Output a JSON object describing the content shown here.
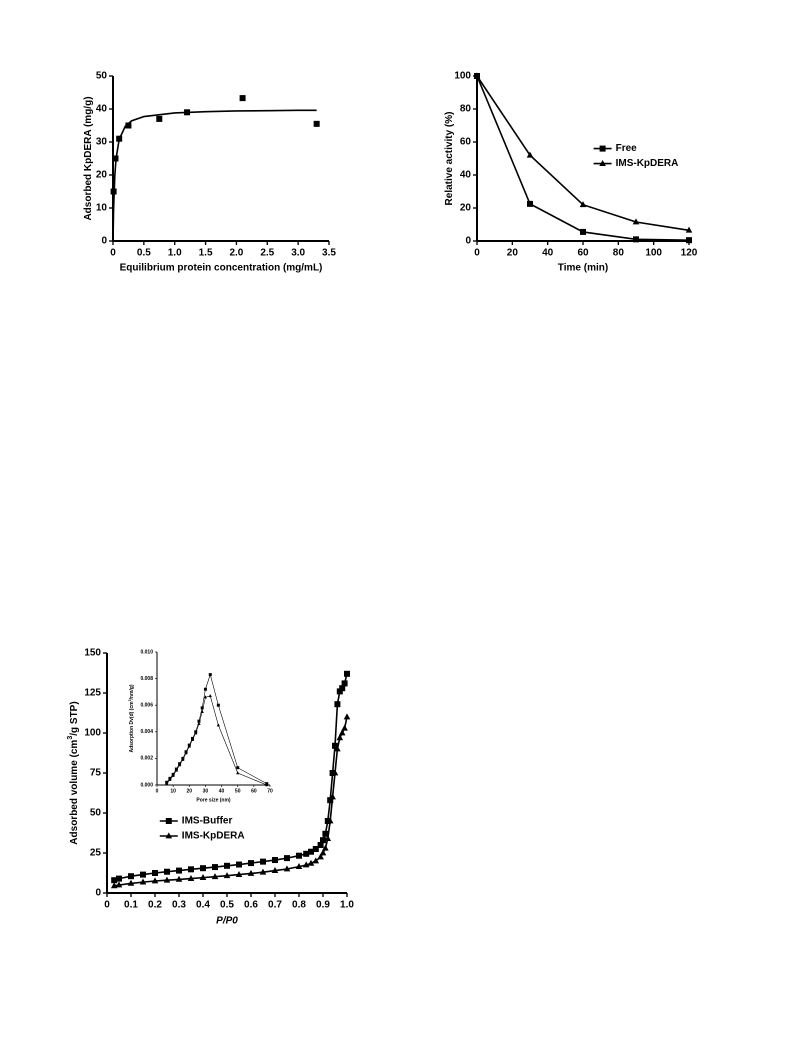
{
  "chart_data": [
    {
      "type": "scatter",
      "xlabel": "Equilibrium protein concentration (mg/mL)",
      "ylabel": [
        "Adsorbed KpDERA (mg/g)"
      ],
      "xlim": [
        0,
        3.5
      ],
      "ylim": [
        0,
        50
      ],
      "xticks": [
        0,
        0.5,
        {
          "value": 1,
          "label": "1.0"
        },
        1.5,
        {
          "value": 2,
          "label": "2.0"
        },
        2.5,
        {
          "value": 3,
          "label": "3.0"
        },
        3.5
      ],
      "yticks": [
        0,
        10,
        20,
        30,
        40,
        50
      ],
      "series": [
        {
          "color": "#000000",
          "marker": "square",
          "line": false,
          "x": [
            0.01,
            0.04,
            0.1,
            0.25,
            0.75,
            1.2,
            2.1,
            3.3
          ],
          "values": [
            15,
            25,
            31,
            35,
            37,
            39,
            43.3,
            35.5
          ]
        },
        {
          "color": "#000000",
          "marker": "none",
          "line": true,
          "x": [
            0,
            0.01,
            0.03,
            0.05,
            0.1,
            0.2,
            0.3,
            0.5,
            1.0,
            1.5,
            2.0,
            2.5,
            3.0,
            3.3
          ],
          "values": [
            0,
            10,
            20,
            25,
            30.8,
            34.8,
            36.4,
            37.7,
            38.8,
            39.2,
            39.4,
            39.5,
            39.6,
            39.6
          ]
        }
      ]
    },
    {
      "type": "line",
      "xlabel": "Time (min)",
      "ylabel": [
        "Relative activity (%)"
      ],
      "xlim": [
        0,
        120
      ],
      "ylim": [
        0,
        100
      ],
      "xticks": [
        0,
        20,
        40,
        60,
        80,
        100,
        120
      ],
      "yticks": [
        0,
        20,
        40,
        60,
        80,
        100
      ],
      "legend": "right",
      "x": [
        0,
        30,
        60,
        90,
        120
      ],
      "series": [
        {
          "name": "Free",
          "color": "#000000",
          "marker": "square",
          "line": true,
          "values": [
            100,
            22.5,
            5.5,
            1,
            0.5
          ]
        },
        {
          "name": "IMS-KpDERA",
          "color": "#000000",
          "marker": "triangle",
          "line": true,
          "values": [
            100,
            52,
            22,
            11.5,
            6.5
          ]
        }
      ]
    },
    {
      "type": "line",
      "xlabel": "P/P0",
      "ylabel": [
        "Adsorbed volume (cm",
        "3",
        "/g STP)"
      ],
      "xlim": [
        0,
        1.0
      ],
      "ylim": [
        0,
        150
      ],
      "xticks": [
        0,
        0.1,
        0.2,
        0.3,
        0.4,
        0.5,
        0.6,
        0.7,
        0.8,
        0.9,
        {
          "value": 1,
          "label": "1.0"
        }
      ],
      "yticks": [
        0,
        25,
        50,
        75,
        100,
        125,
        150
      ],
      "legend": "center left",
      "x": [
        0.03,
        0.05,
        0.1,
        0.15,
        0.2,
        0.25,
        0.3,
        0.35,
        0.4,
        0.45,
        0.5,
        0.55,
        0.6,
        0.65,
        0.7,
        0.75,
        0.8,
        0.83,
        0.85,
        0.87,
        0.89,
        0.9,
        0.91,
        0.92,
        0.93,
        0.94,
        0.95,
        0.96,
        0.97,
        0.98,
        0.99,
        1.0
      ],
      "series": [
        {
          "name": "IMS-Buffer",
          "color": "#000000",
          "marker": "square",
          "line": true,
          "values": [
            8,
            9,
            10.5,
            11.5,
            12.5,
            13.3,
            14,
            14.8,
            15.5,
            16.2,
            17,
            17.8,
            18.7,
            19.6,
            20.6,
            21.8,
            23.3,
            24.5,
            25.8,
            27.5,
            30,
            33,
            37,
            45,
            58,
            75,
            92,
            118,
            126,
            128,
            131,
            137
          ]
        },
        {
          "name": "IMS-KpDERA",
          "color": "#000000",
          "marker": "triangle",
          "line": true,
          "values": [
            4.5,
            5,
            6,
            6.8,
            7.5,
            8,
            8.5,
            9,
            9.6,
            10.2,
            10.8,
            11.5,
            12.2,
            13,
            14,
            15,
            16.5,
            17.5,
            18.5,
            20,
            22.5,
            25,
            28,
            34,
            45,
            60,
            75,
            90,
            97,
            100,
            103,
            110
          ]
        }
      ]
    },
    {
      "type": "line",
      "xlabel": "Pore size (nm)",
      "ylabel": [
        "Adsorption Dv(d) (cm",
        "3",
        "/nm/g)"
      ],
      "xlim": [
        0,
        70
      ],
      "ylim": [
        0,
        0.01
      ],
      "xticks": [
        0,
        10,
        20,
        30,
        40,
        50,
        60,
        70
      ],
      "yticks": [
        {
          "value": 0,
          "label": "0.000"
        },
        {
          "value": 0.002,
          "label": "0.002"
        },
        {
          "value": 0.004,
          "label": "0.004"
        },
        {
          "value": 0.006,
          "label": "0.006"
        },
        {
          "value": 0.008,
          "label": "0.008"
        },
        {
          "value": 0.01,
          "label": "0.010"
        }
      ],
      "x": [
        6,
        8,
        10,
        12,
        14,
        16,
        18,
        20,
        22,
        24,
        26,
        28,
        30,
        33,
        38,
        50,
        68
      ],
      "series": [
        {
          "color": "#000000",
          "marker": "square",
          "line": true,
          "values": [
            0.0002,
            0.0005,
            0.0008,
            0.0012,
            0.0016,
            0.002,
            0.0025,
            0.003,
            0.0035,
            0.004,
            0.0048,
            0.0058,
            0.0072,
            0.0083,
            0.006,
            0.0013,
            0.0001
          ]
        },
        {
          "color": "#000000",
          "marker": "triangle",
          "line": true,
          "values": [
            0.0001,
            0.0004,
            0.0007,
            0.0011,
            0.0015,
            0.0019,
            0.0024,
            0.0029,
            0.0034,
            0.0039,
            0.0046,
            0.0055,
            0.0066,
            0.0067,
            0.0045,
            0.0009,
            0
          ]
        }
      ]
    }
  ]
}
